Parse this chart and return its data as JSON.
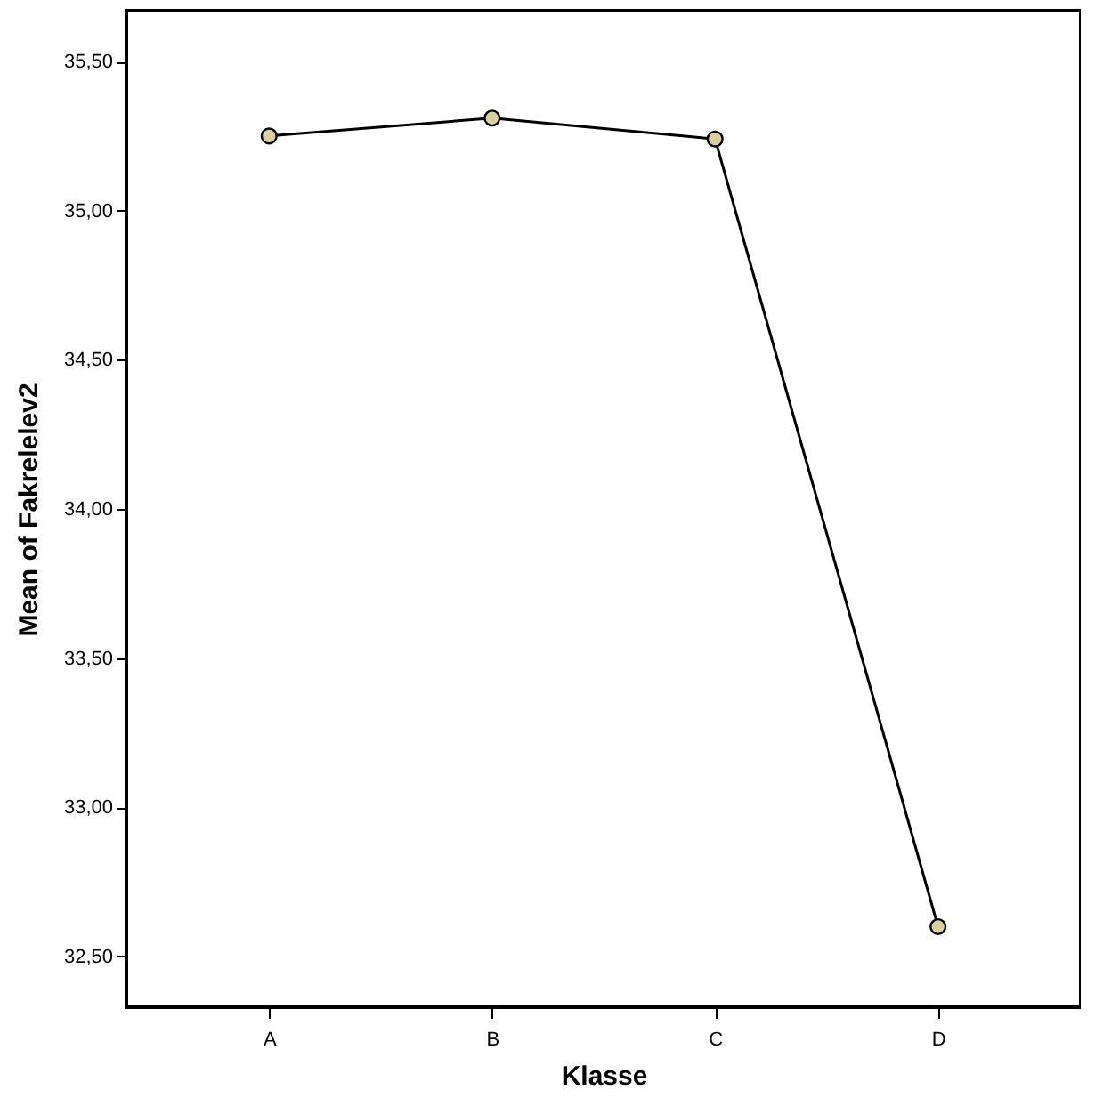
{
  "chart_data": {
    "type": "line",
    "xlabel": "Klasse",
    "ylabel": "Mean of Fakrelelev2",
    "categories": [
      "A",
      "B",
      "C",
      "D"
    ],
    "series": [
      {
        "color": "#000000",
        "values": [
          35.25,
          35.31,
          35.24,
          32.6
        ]
      }
    ],
    "ylim": [
      32.33,
      35.67
    ],
    "yticks": [
      {
        "value": 32.5,
        "label": "32,50"
      },
      {
        "value": 33,
        "label": "33,00"
      },
      {
        "value": 33.5,
        "label": "33,50"
      },
      {
        "value": 34,
        "label": "34,00"
      },
      {
        "value": 34.5,
        "label": "34,50"
      },
      {
        "value": 35,
        "label": "35,00"
      },
      {
        "value": 35.5,
        "label": "35,50"
      }
    ],
    "grid": false,
    "legend": false,
    "marker": "circle",
    "line_style": "solid"
  }
}
